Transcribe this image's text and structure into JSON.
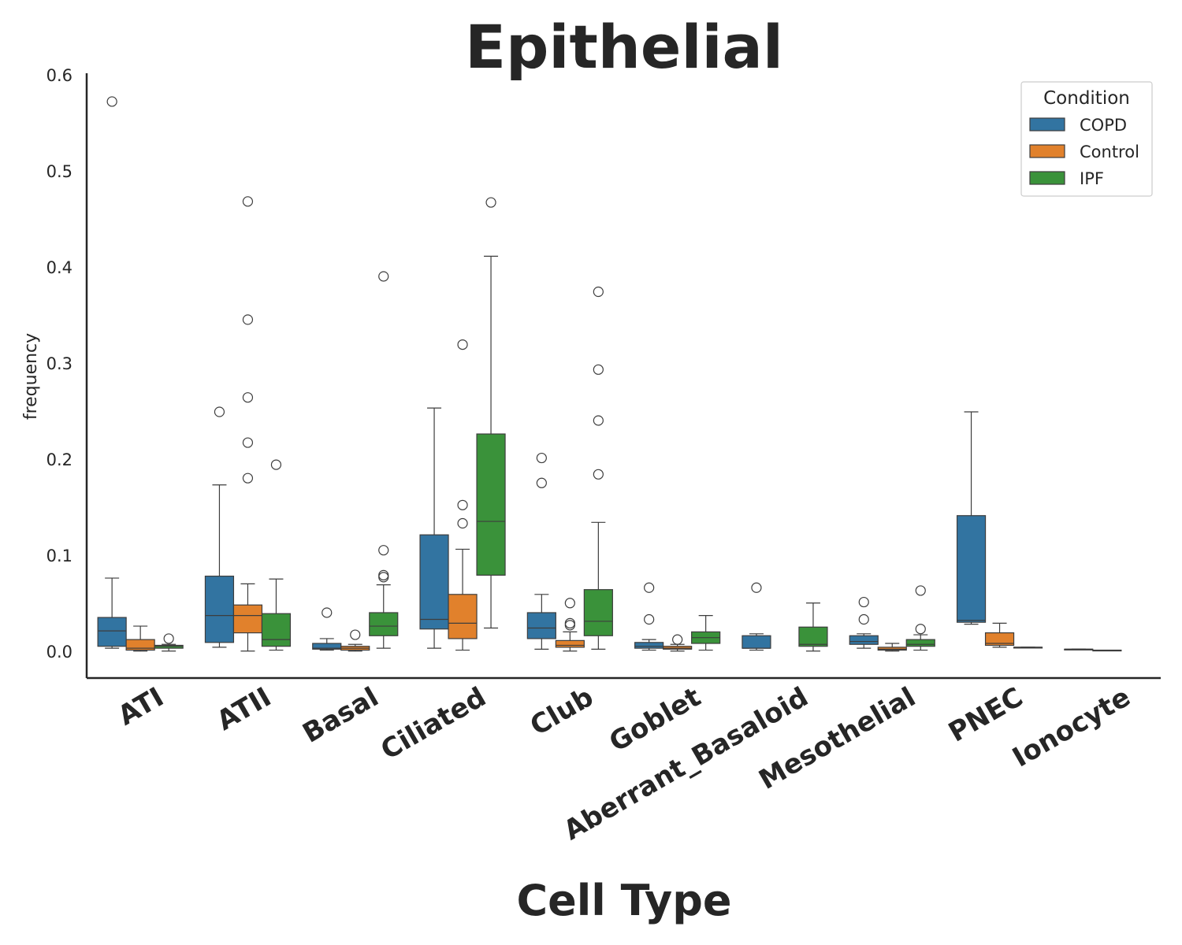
{
  "chart_data": {
    "type": "box",
    "title": "Epithelial",
    "xlabel": "Cell Type",
    "ylabel": "frequency",
    "ylim": [
      -0.027,
      0.605
    ],
    "yticks": [
      "0.0",
      "0.1",
      "0.2",
      "0.3",
      "0.4",
      "0.5",
      "0.6"
    ],
    "grid": false,
    "legend": {
      "title": "Condition",
      "placement": "top-right"
    },
    "categories": [
      "ATI",
      "ATII",
      "Basal",
      "Ciliated",
      "Club",
      "Goblet",
      "Aberrant_Basaloid",
      "Mesothelial",
      "PNEC",
      "Ionocyte"
    ],
    "series": [
      {
        "name": "COPD",
        "color": "#3274a1",
        "boxes": [
          {
            "whislo": 0.004,
            "q1": 0.006,
            "med": 0.022,
            "q3": 0.036,
            "whishi": 0.077,
            "fliers": [
              0.573
            ]
          },
          {
            "whislo": 0.005,
            "q1": 0.01,
            "med": 0.038,
            "q3": 0.079,
            "whishi": 0.174,
            "fliers": [
              0.25
            ]
          },
          {
            "whislo": 0.002,
            "q1": 0.003,
            "med": 0.004,
            "q3": 0.009,
            "whishi": 0.014,
            "fliers": [
              0.041
            ]
          },
          {
            "whislo": 0.004,
            "q1": 0.024,
            "med": 0.034,
            "q3": 0.122,
            "whishi": 0.254,
            "fliers": []
          },
          {
            "whislo": 0.003,
            "q1": 0.014,
            "med": 0.025,
            "q3": 0.041,
            "whishi": 0.06,
            "fliers": [
              0.176,
              0.202
            ]
          },
          {
            "whislo": 0.002,
            "q1": 0.004,
            "med": 0.006,
            "q3": 0.01,
            "whishi": 0.013,
            "fliers": [
              0.034,
              0.067
            ]
          },
          {
            "whislo": 0.002,
            "q1": 0.004,
            "med": 0.004,
            "q3": 0.017,
            "whishi": 0.019,
            "fliers": [
              0.067
            ]
          },
          {
            "whislo": 0.004,
            "q1": 0.008,
            "med": 0.011,
            "q3": 0.017,
            "whishi": 0.019,
            "fliers": [
              0.034,
              0.052
            ]
          },
          {
            "whislo": 0.029,
            "q1": 0.031,
            "med": 0.033,
            "q3": 0.142,
            "whishi": 0.25,
            "fliers": []
          },
          {
            "whislo": 0.003,
            "q1": 0.003,
            "med": 0.003,
            "q3": 0.003,
            "whishi": 0.003,
            "fliers": []
          }
        ]
      },
      {
        "name": "Control",
        "color": "#e1812c",
        "boxes": [
          {
            "whislo": 0.001,
            "q1": 0.002,
            "med": 0.004,
            "q3": 0.013,
            "whishi": 0.027,
            "fliers": []
          },
          {
            "whislo": 0.001,
            "q1": 0.02,
            "med": 0.038,
            "q3": 0.049,
            "whishi": 0.071,
            "fliers": [
              0.181,
              0.218,
              0.265,
              0.346,
              0.469
            ]
          },
          {
            "whislo": 0.001,
            "q1": 0.002,
            "med": 0.004,
            "q3": 0.006,
            "whishi": 0.008,
            "fliers": [
              0.018
            ]
          },
          {
            "whislo": 0.002,
            "q1": 0.014,
            "med": 0.03,
            "q3": 0.06,
            "whishi": 0.107,
            "fliers": [
              0.134,
              0.153,
              0.32
            ]
          },
          {
            "whislo": 0.001,
            "q1": 0.005,
            "med": 0.007,
            "q3": 0.012,
            "whishi": 0.021,
            "fliers": [
              0.028,
              0.03,
              0.051
            ]
          },
          {
            "whislo": 0.001,
            "q1": 0.003,
            "med": 0.004,
            "q3": 0.006,
            "whishi": 0.008,
            "fliers": [
              0.013
            ]
          },
          null,
          {
            "whislo": 0.001,
            "q1": 0.002,
            "med": 0.003,
            "q3": 0.005,
            "whishi": 0.009,
            "fliers": []
          },
          {
            "whislo": 0.005,
            "q1": 0.007,
            "med": 0.009,
            "q3": 0.02,
            "whishi": 0.03,
            "fliers": []
          },
          {
            "whislo": 0.002,
            "q1": 0.002,
            "med": 0.002,
            "q3": 0.002,
            "whishi": 0.002,
            "fliers": []
          }
        ]
      },
      {
        "name": "IPF",
        "color": "#3a923a",
        "boxes": [
          {
            "whislo": 0.001,
            "q1": 0.004,
            "med": 0.006,
            "q3": 0.007,
            "whishi": 0.008,
            "fliers": [
              0.014
            ]
          },
          {
            "whislo": 0.002,
            "q1": 0.006,
            "med": 0.013,
            "q3": 0.04,
            "whishi": 0.076,
            "fliers": [
              0.195
            ]
          },
          {
            "whislo": 0.004,
            "q1": 0.017,
            "med": 0.027,
            "q3": 0.041,
            "whishi": 0.07,
            "fliers": [
              0.078,
              0.08,
              0.106,
              0.391
            ]
          },
          {
            "whislo": 0.025,
            "q1": 0.08,
            "med": 0.136,
            "q3": 0.227,
            "whishi": 0.412,
            "fliers": [
              0.468
            ]
          },
          {
            "whislo": 0.003,
            "q1": 0.017,
            "med": 0.032,
            "q3": 0.065,
            "whishi": 0.135,
            "fliers": [
              0.185,
              0.241,
              0.294,
              0.375
            ]
          },
          {
            "whislo": 0.002,
            "q1": 0.009,
            "med": 0.015,
            "q3": 0.021,
            "whishi": 0.038,
            "fliers": []
          },
          {
            "whislo": 0.001,
            "q1": 0.006,
            "med": 0.008,
            "q3": 0.026,
            "whishi": 0.051,
            "fliers": []
          },
          {
            "whislo": 0.002,
            "q1": 0.006,
            "med": 0.008,
            "q3": 0.013,
            "whishi": 0.018,
            "fliers": [
              0.024,
              0.064
            ]
          },
          {
            "whislo": 0.005,
            "q1": 0.005,
            "med": 0.005,
            "q3": 0.005,
            "whishi": 0.005,
            "fliers": []
          },
          null
        ]
      }
    ]
  }
}
